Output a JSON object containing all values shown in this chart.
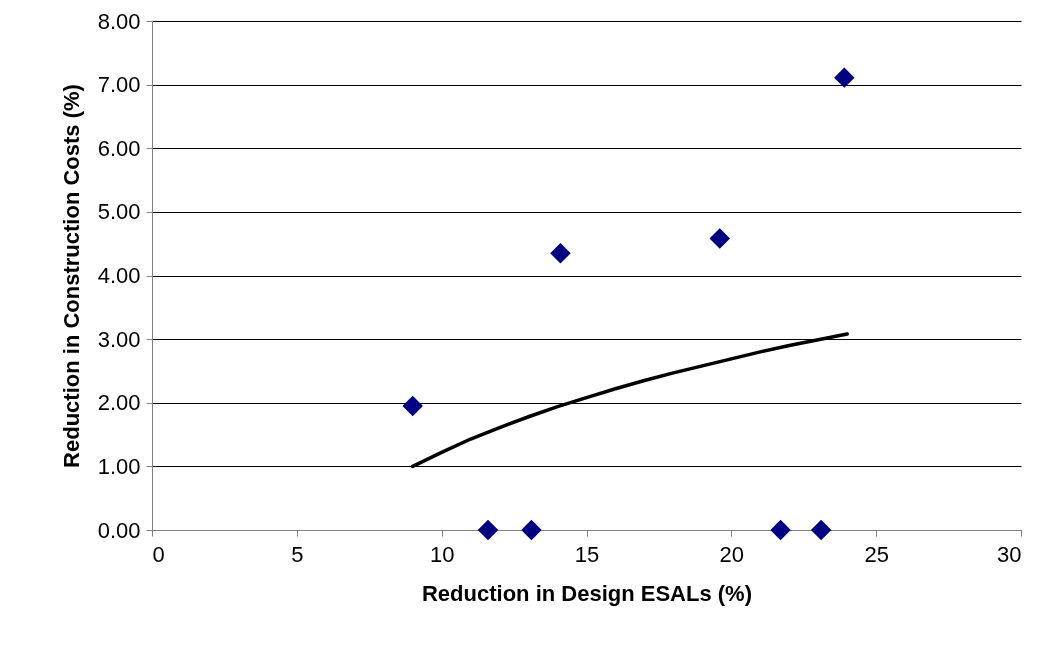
{
  "chart_data": {
    "type": "scatter",
    "xlabel": "Reduction in Design ESALs (%)",
    "ylabel": "Reduction in Construction Costs (%)",
    "xlim": [
      0,
      30
    ],
    "xticks": [
      0,
      5,
      10,
      15,
      20,
      25,
      30
    ],
    "ylim": [
      0,
      8
    ],
    "yticks": [
      {
        "value": 0,
        "label": "0.00"
      },
      {
        "value": 1,
        "label": "1.00"
      },
      {
        "value": 2,
        "label": "2.00"
      },
      {
        "value": 3,
        "label": "3.00"
      },
      {
        "value": 4,
        "label": "4.00"
      },
      {
        "value": 5,
        "label": "5.00"
      },
      {
        "value": 6,
        "label": "6.00"
      },
      {
        "value": 7,
        "label": "7.00"
      },
      {
        "value": 8,
        "label": "8.00"
      }
    ],
    "grid": "y",
    "series": [
      {
        "color": "#000080",
        "marker": "diamond",
        "x": [
          9.0,
          11.6,
          13.1,
          14.1,
          19.6,
          21.7,
          23.1,
          23.9
        ],
        "values": [
          1.95,
          0,
          0,
          4.35,
          4.58,
          0,
          0,
          7.11
        ]
      },
      {
        "type": "line",
        "color": "#000000",
        "marker": "none",
        "line_style": "solid",
        "x": [
          9.0,
          10,
          11,
          12,
          13,
          14,
          15,
          16,
          17,
          18,
          19,
          20,
          21,
          22,
          23,
          24.0
        ],
        "values": [
          1.0,
          1.22,
          1.43,
          1.61,
          1.78,
          1.94,
          2.08,
          2.22,
          2.35,
          2.47,
          2.58,
          2.69,
          2.8,
          2.9,
          2.99,
          3.08
        ]
      }
    ]
  }
}
